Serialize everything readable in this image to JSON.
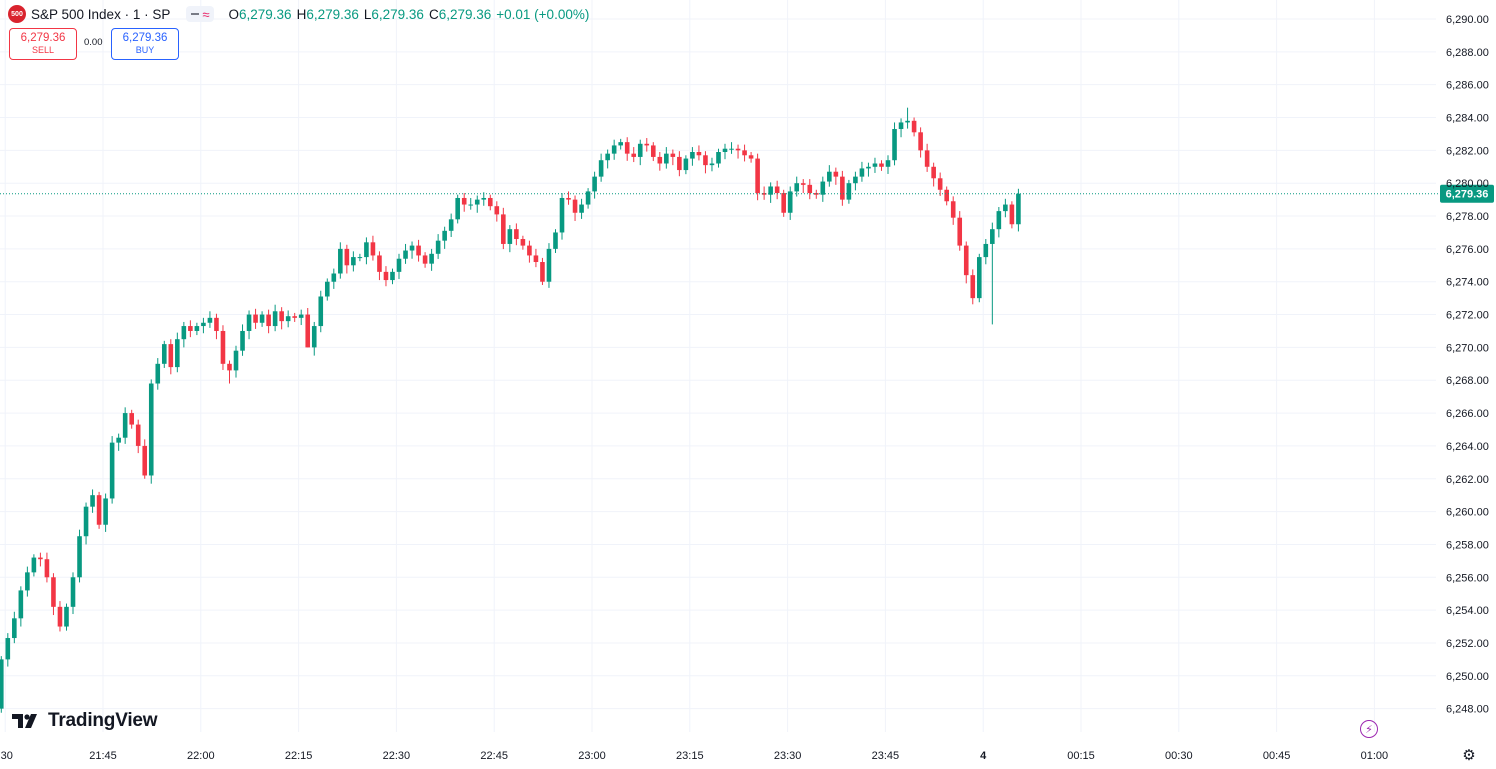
{
  "header": {
    "symbol_badge": "500",
    "symbol": "S&P 500 Index · 1 · SP",
    "wave_glyph": "≈",
    "o_label": "O",
    "o_value": "6,279.36",
    "h_label": "H",
    "h_value": "6,279.36",
    "l_label": "L",
    "l_value": "6,279.36",
    "c_label": "C",
    "c_value": "6,279.36",
    "change": "+0.01 (+0.00%)"
  },
  "trade": {
    "sell_price": "6,279.36",
    "sell_label": "SELL",
    "spread": "0.00",
    "buy_price": "6,279.36",
    "buy_label": "BUY"
  },
  "brand": {
    "name": "TradingView",
    "logo_icon": "tradingview-logo-icon"
  },
  "icons": {
    "bolt": "lightning-icon",
    "settings": "gear-icon"
  },
  "colors": {
    "up": "#089981",
    "down": "#f23645",
    "grid": "#f0f3fa",
    "price_line": "#089981",
    "axis_text": "#131722"
  },
  "chart_data": {
    "type": "candlestick",
    "title": "",
    "interval": "1",
    "ylim": [
      6247,
      6291
    ],
    "y_ticks": [
      6248,
      6250,
      6252,
      6254,
      6256,
      6258,
      6260,
      6262,
      6264,
      6266,
      6268,
      6270,
      6272,
      6274,
      6276,
      6278,
      6280,
      6282,
      6284,
      6286,
      6288,
      6290
    ],
    "y_tick_labels": [
      "6,248.00",
      "6,250.00",
      "6,252.00",
      "6,254.00",
      "6,256.00",
      "6,258.00",
      "6,260.00",
      "6,262.00",
      "6,264.00",
      "6,266.00",
      "6,268.00",
      "6,270.00",
      "6,272.00",
      "6,274.00",
      "6,276.00",
      "6,278.00",
      "6,280.00",
      "6,282.00",
      "6,284.00",
      "6,286.00",
      "6,288.00",
      "6,290.00"
    ],
    "x_ticks": [
      {
        "label": ":30",
        "minute": -15
      },
      {
        "label": "21:45",
        "minute": 0
      },
      {
        "label": "22:00",
        "minute": 15
      },
      {
        "label": "22:15",
        "minute": 30
      },
      {
        "label": "22:30",
        "minute": 45
      },
      {
        "label": "22:45",
        "minute": 60
      },
      {
        "label": "23:00",
        "minute": 75
      },
      {
        "label": "23:15",
        "minute": 90
      },
      {
        "label": "23:30",
        "minute": 105
      },
      {
        "label": "23:45",
        "minute": 120
      },
      {
        "label": "4",
        "minute": 135
      },
      {
        "label": "00:15",
        "minute": 150
      },
      {
        "label": "00:30",
        "minute": 165
      },
      {
        "label": "00:45",
        "minute": 180
      },
      {
        "label": "01:00",
        "minute": 195
      }
    ],
    "last_price": 6279.36,
    "last_price_label": "6,279.36",
    "grid": true,
    "close": [
      6251.0,
      6252.3,
      6253.5,
      6255.2,
      6256.3,
      6257.2,
      6257.1,
      6256.0,
      6254.2,
      6253.0,
      6254.2,
      6256.0,
      6258.5,
      6260.3,
      6261.0,
      6259.2,
      6260.8,
      6264.2,
      6264.5,
      6266.0,
      6265.3,
      6264.0,
      6262.2,
      6267.8,
      6269.0,
      6270.2,
      6268.8,
      6270.5,
      6271.3,
      6271.0,
      6271.3,
      6271.5,
      6271.8,
      6271.0,
      6269.0,
      6268.6,
      6269.8,
      6271.0,
      6272.0,
      6271.5,
      6272.0,
      6271.3,
      6272.2,
      6271.6,
      6271.9,
      6271.8,
      6272.0,
      6270.0,
      6271.3,
      6273.1,
      6274.0,
      6274.5,
      6276.0,
      6275.0,
      6275.5,
      6275.5,
      6276.4,
      6275.6,
      6274.6,
      6274.1,
      6274.6,
      6275.4,
      6275.9,
      6276.2,
      6275.6,
      6275.1,
      6275.7,
      6276.5,
      6277.1,
      6277.8,
      6279.1,
      6278.7,
      6278.7,
      6279.0,
      6279.1,
      6278.6,
      6278.1,
      6276.3,
      6277.2,
      6276.6,
      6276.2,
      6275.6,
      6275.2,
      6274.0,
      6276.0,
      6277.0,
      6279.1,
      6279.0,
      6278.2,
      6278.7,
      6279.5,
      6280.4,
      6281.4,
      6281.8,
      6282.3,
      6282.5,
      6281.8,
      6281.6,
      6282.4,
      6282.3,
      6281.6,
      6281.2,
      6281.8,
      6281.6,
      6280.8,
      6281.5,
      6281.9,
      6281.7,
      6281.1,
      6281.2,
      6281.9,
      6282.1,
      6282.1,
      6282.0,
      6281.7,
      6281.5,
      6279.4,
      6279.3,
      6279.8,
      6279.4,
      6278.2,
      6279.5,
      6280.0,
      6279.9,
      6279.4,
      6279.3,
      6280.1,
      6280.7,
      6280.4,
      6279.0,
      6280.0,
      6280.4,
      6280.9,
      6281.0,
      6281.2,
      6281.0,
      6281.4,
      6283.3,
      6283.7,
      6283.8,
      6283.1,
      6282.0,
      6281.0,
      6280.3,
      6279.6,
      6278.9,
      6277.9,
      6276.2,
      6274.4,
      6273.0,
      6275.5,
      6276.3,
      6277.2,
      6278.3,
      6278.7,
      6277.5,
      6279.36
    ],
    "candles": [
      [
        6248,
        6251.0
      ],
      [
        6251,
        6252.3
      ],
      [
        6252.3,
        6253.5
      ],
      [
        6253.5,
        6255.2
      ],
      [
        6255.2,
        6256.3
      ],
      [
        6256.3,
        6257.2
      ],
      [
        6257.2,
        6257.1
      ],
      [
        6257.1,
        6256.0
      ],
      [
        6256.0,
        6254.2
      ],
      [
        6254.2,
        6253.0
      ],
      [
        6253.0,
        6254.2
      ],
      [
        6254.2,
        6256.0
      ],
      [
        6256.0,
        6258.5
      ],
      [
        6258.5,
        6260.3
      ],
      [
        6260.3,
        6261.0
      ],
      [
        6261.0,
        6259.2
      ],
      [
        6259.2,
        6260.8
      ],
      [
        6260.8,
        6264.2
      ],
      [
        6264.2,
        6264.5
      ],
      [
        6264.5,
        6266.0
      ],
      [
        6266.0,
        6265.3
      ],
      [
        6265.3,
        6264.0
      ],
      [
        6264.0,
        6262.2
      ],
      [
        6262.2,
        6267.8
      ],
      [
        6267.8,
        6269.0
      ],
      [
        6269.0,
        6270.2
      ],
      [
        6270.2,
        6268.8
      ],
      [
        6268.8,
        6270.5
      ],
      [
        6270.5,
        6271.3
      ],
      [
        6271.3,
        6271.0
      ],
      [
        6271.0,
        6271.3
      ],
      [
        6271.3,
        6271.5
      ],
      [
        6271.5,
        6271.8
      ],
      [
        6271.8,
        6271.0
      ],
      [
        6271.0,
        6269.0
      ],
      [
        6269.0,
        6268.6
      ],
      [
        6268.6,
        6269.8
      ],
      [
        6269.8,
        6271.0
      ],
      [
        6271.0,
        6272.0
      ],
      [
        6272.0,
        6271.5
      ],
      [
        6271.5,
        6272.0
      ],
      [
        6272.0,
        6271.3
      ],
      [
        6271.3,
        6272.2
      ],
      [
        6272.2,
        6271.6
      ],
      [
        6271.6,
        6271.9
      ],
      [
        6271.9,
        6271.8
      ],
      [
        6271.8,
        6272.0
      ],
      [
        6272.0,
        6270.0
      ],
      [
        6270.0,
        6271.3
      ],
      [
        6271.3,
        6273.1
      ],
      [
        6273.1,
        6274.0
      ],
      [
        6274.0,
        6274.5
      ],
      [
        6274.5,
        6276.0
      ],
      [
        6276.0,
        6275.0
      ],
      [
        6275.0,
        6275.5
      ],
      [
        6275.5,
        6275.5
      ],
      [
        6275.5,
        6276.4
      ],
      [
        6276.4,
        6275.6
      ],
      [
        6275.6,
        6274.6
      ],
      [
        6274.6,
        6274.1
      ],
      [
        6274.1,
        6274.6
      ],
      [
        6274.6,
        6275.4
      ],
      [
        6275.4,
        6275.9
      ],
      [
        6275.9,
        6276.2
      ],
      [
        6276.2,
        6275.6
      ],
      [
        6275.6,
        6275.1
      ],
      [
        6275.1,
        6275.7
      ],
      [
        6275.7,
        6276.5
      ],
      [
        6276.5,
        6277.1
      ],
      [
        6277.1,
        6277.8
      ],
      [
        6277.8,
        6279.1
      ],
      [
        6279.1,
        6278.7
      ],
      [
        6278.7,
        6278.7
      ],
      [
        6278.7,
        6279.0
      ],
      [
        6279.0,
        6279.1
      ],
      [
        6279.1,
        6278.6
      ],
      [
        6278.6,
        6278.1
      ],
      [
        6278.1,
        6276.3
      ],
      [
        6276.3,
        6277.2
      ],
      [
        6277.2,
        6276.6
      ],
      [
        6276.6,
        6276.2
      ],
      [
        6276.2,
        6275.6
      ],
      [
        6275.6,
        6275.2
      ],
      [
        6275.2,
        6274.0
      ],
      [
        6274.0,
        6276.0
      ],
      [
        6276.0,
        6277.0
      ],
      [
        6277.0,
        6279.1
      ],
      [
        6279.1,
        6279.0
      ],
      [
        6279.0,
        6278.2
      ],
      [
        6278.2,
        6278.7
      ],
      [
        6278.7,
        6279.5
      ],
      [
        6279.5,
        6280.4
      ],
      [
        6280.4,
        6281.4
      ],
      [
        6281.4,
        6281.8
      ],
      [
        6281.8,
        6282.3
      ],
      [
        6282.3,
        6282.5
      ],
      [
        6282.5,
        6281.8
      ],
      [
        6281.8,
        6281.6
      ],
      [
        6281.6,
        6282.4
      ],
      [
        6282.4,
        6282.3
      ],
      [
        6282.3,
        6281.6
      ],
      [
        6281.6,
        6281.2
      ],
      [
        6281.2,
        6281.8
      ],
      [
        6281.8,
        6281.6
      ],
      [
        6281.6,
        6280.8
      ],
      [
        6280.8,
        6281.5
      ],
      [
        6281.5,
        6281.9
      ],
      [
        6281.9,
        6281.7
      ],
      [
        6281.7,
        6281.1
      ],
      [
        6281.1,
        6281.2
      ],
      [
        6281.2,
        6281.9
      ],
      [
        6281.9,
        6282.1
      ],
      [
        6282.1,
        6282.1
      ],
      [
        6282.1,
        6282.0
      ],
      [
        6282.0,
        6281.7
      ],
      [
        6281.7,
        6281.5
      ],
      [
        6281.5,
        6279.4
      ],
      [
        6279.4,
        6279.3
      ],
      [
        6279.3,
        6279.8
      ],
      [
        6279.8,
        6279.4
      ],
      [
        6279.4,
        6278.2
      ],
      [
        6278.2,
        6279.5
      ],
      [
        6279.5,
        6280.0
      ],
      [
        6280.0,
        6279.9
      ],
      [
        6279.9,
        6279.4
      ],
      [
        6279.4,
        6279.3
      ],
      [
        6279.3,
        6280.1
      ],
      [
        6280.1,
        6280.7
      ],
      [
        6280.7,
        6280.4
      ],
      [
        6280.4,
        6279.0
      ],
      [
        6279.0,
        6280.0
      ],
      [
        6280.0,
        6280.4
      ],
      [
        6280.4,
        6280.9
      ],
      [
        6280.9,
        6281.0
      ],
      [
        6281.0,
        6281.2
      ],
      [
        6281.2,
        6281.0
      ],
      [
        6281.0,
        6281.4
      ],
      [
        6281.4,
        6283.3
      ],
      [
        6283.3,
        6283.7
      ],
      [
        6283.7,
        6283.8
      ],
      [
        6283.8,
        6283.1
      ],
      [
        6283.1,
        6282.0
      ],
      [
        6282.0,
        6281.0
      ],
      [
        6281.0,
        6280.3
      ],
      [
        6280.3,
        6279.6
      ],
      [
        6279.6,
        6278.9
      ],
      [
        6278.9,
        6277.9
      ],
      [
        6277.9,
        6276.2
      ],
      [
        6276.2,
        6274.4
      ],
      [
        6274.4,
        6273.0
      ],
      [
        6273.0,
        6275.5
      ],
      [
        6275.5,
        6276.3
      ],
      [
        6276.3,
        6277.2
      ],
      [
        6277.2,
        6278.3
      ],
      [
        6278.3,
        6278.7
      ],
      [
        6278.7,
        6277.5
      ],
      [
        6277.5,
        6279.36
      ]
    ],
    "wick_extents": {
      "low_pad": 0.5,
      "high_pad": 0.4,
      "notable": [
        {
          "index": 9,
          "low": 6252.7
        },
        {
          "index": 22,
          "low": 6262.0
        },
        {
          "index": 35,
          "low": 6267.8
        },
        {
          "index": 47,
          "low": 6270.0
        },
        {
          "index": 83,
          "low": 6273.8
        },
        {
          "index": 139,
          "high": 6284.6
        },
        {
          "index": 152,
          "low": 6271.4
        }
      ]
    }
  }
}
